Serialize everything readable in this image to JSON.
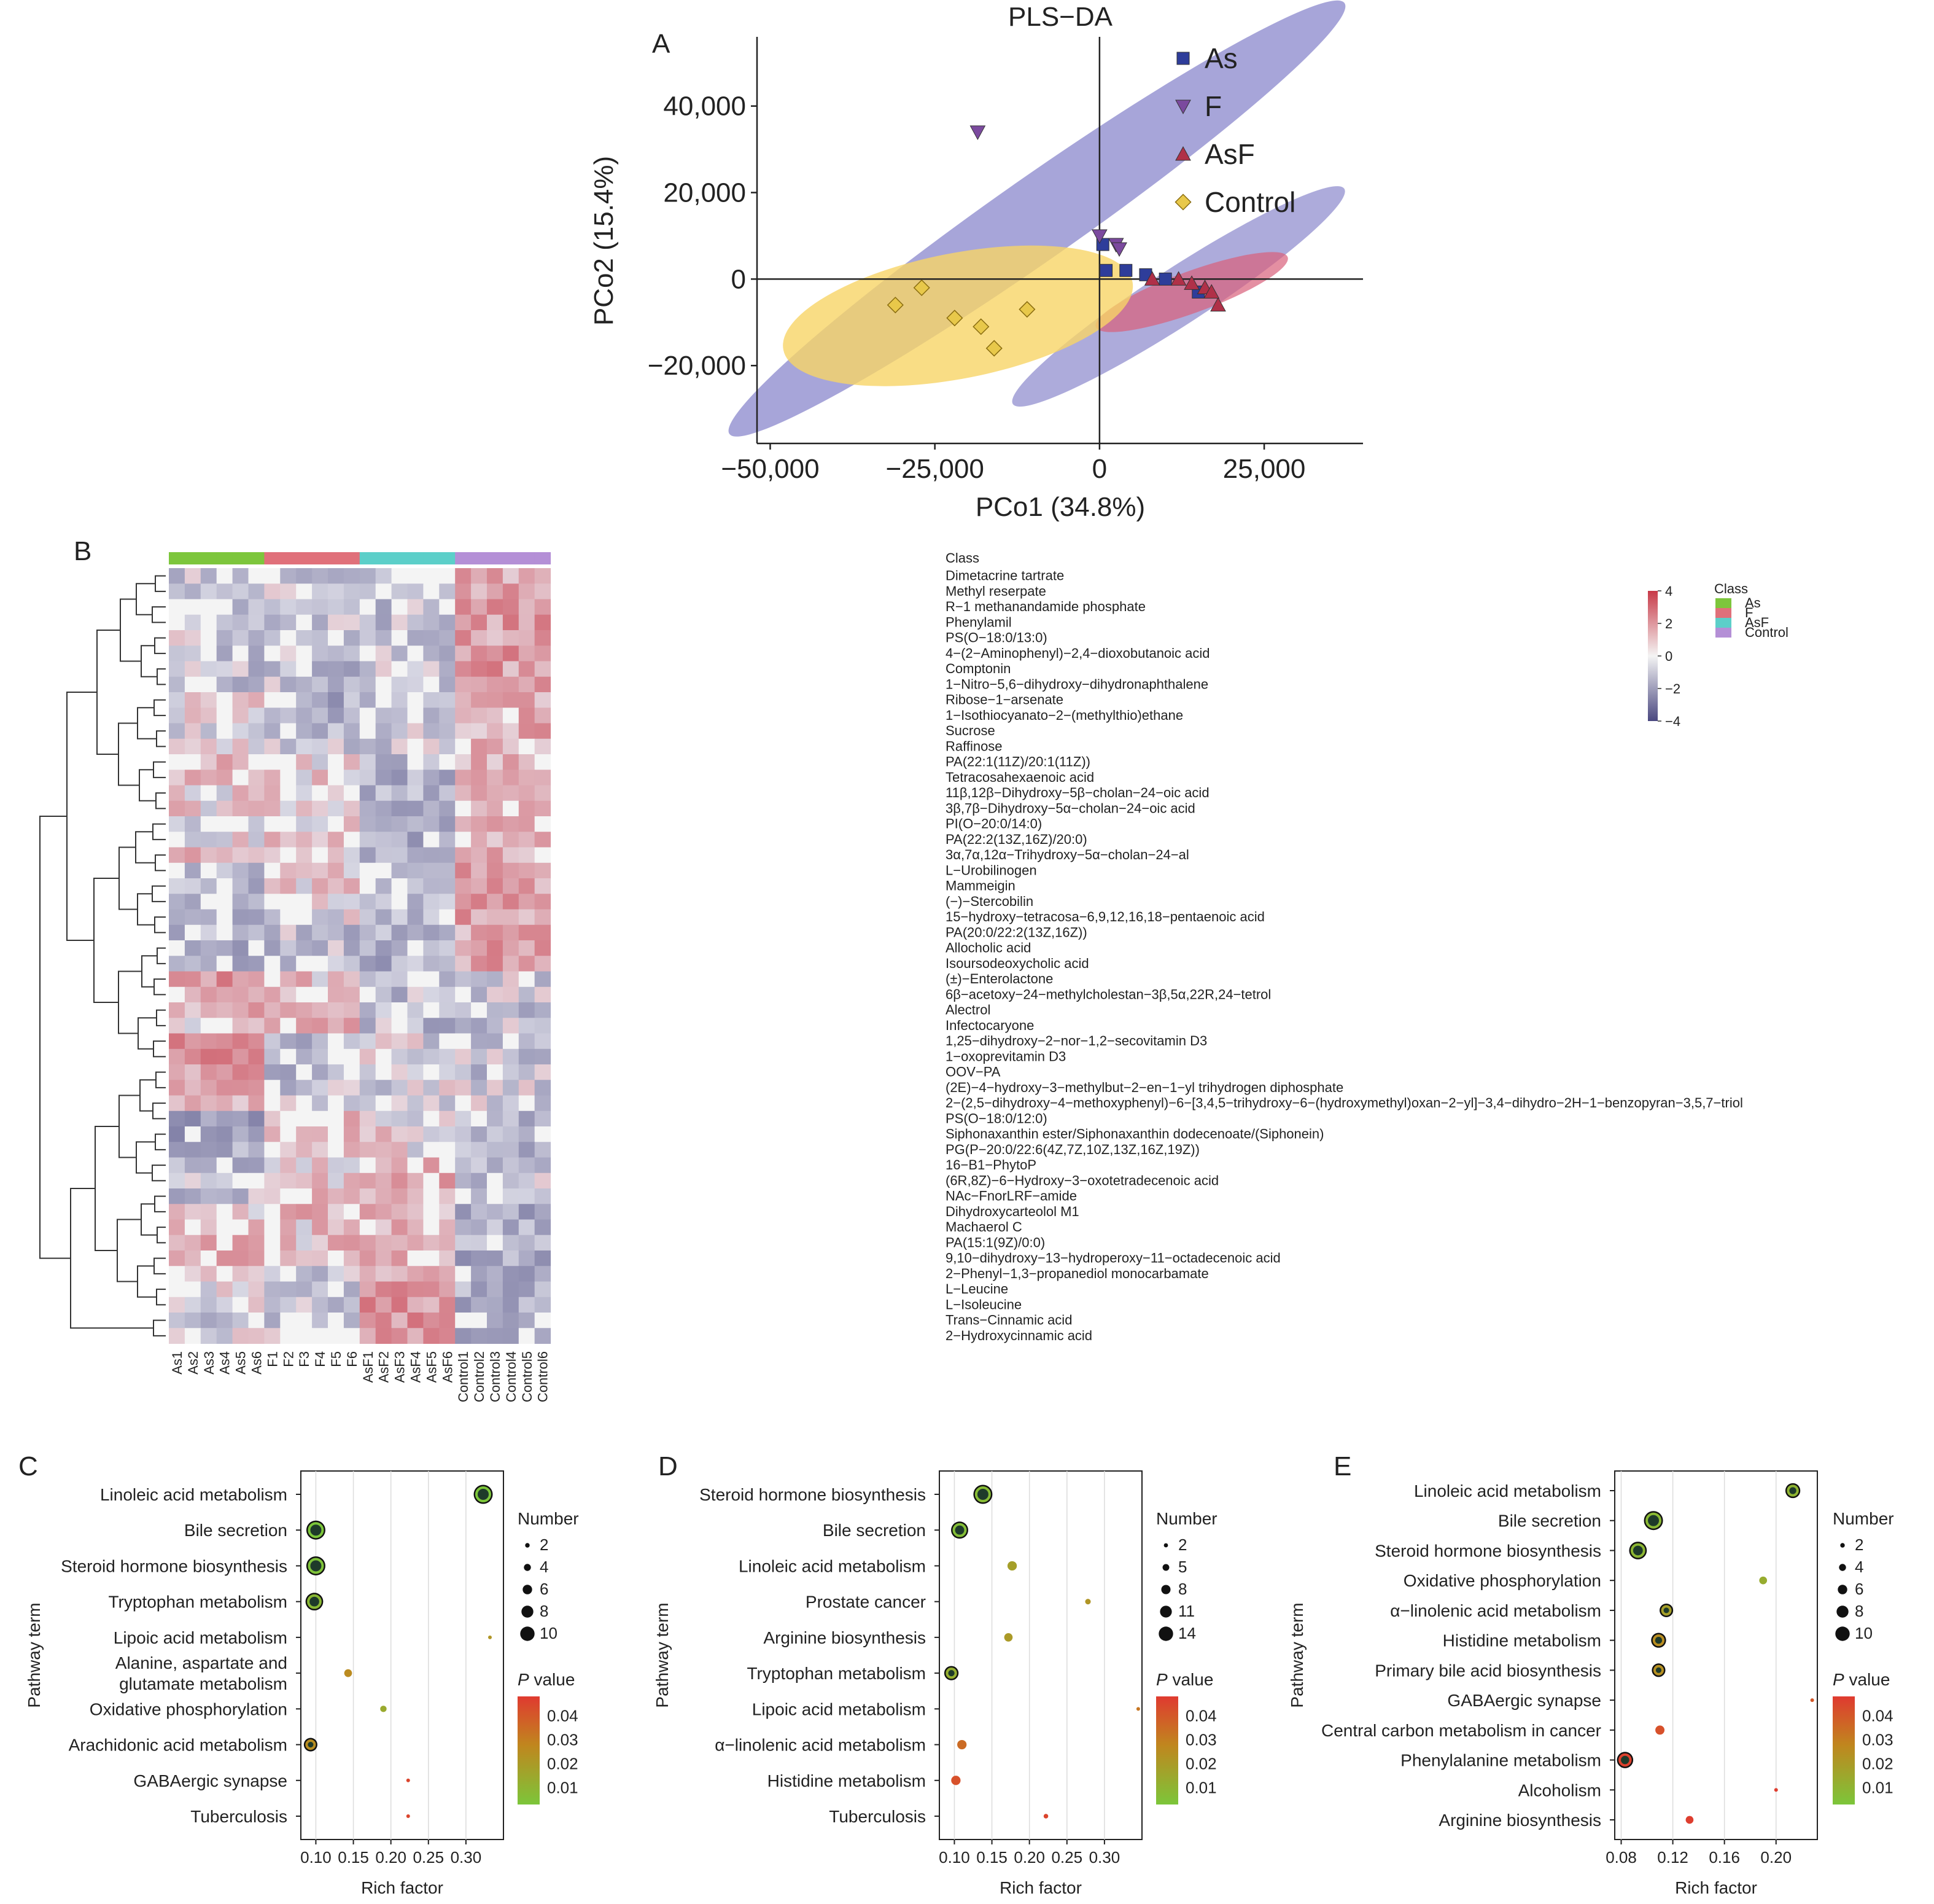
{
  "colors": {
    "As": "#2e3d9a",
    "F": "#7b4a9e",
    "AsF": "#b03048",
    "Control": "#e8c84a",
    "ellipse_purple": "#8a87cc",
    "ellipse_red": "#d9607a",
    "ellipse_yellow": "#f8d566",
    "class_As": "#7dc63c",
    "class_F": "#e0707a",
    "class_AsF": "#5ccfc9",
    "class_Control": "#b48fd6",
    "heat_high": "#c83a48",
    "heat_mid": "#f4f4f4",
    "heat_low": "#4a4880",
    "p_low": "#7cc63a",
    "p_high": "#e03a30"
  },
  "panel_labels": {
    "a": "A",
    "b": "B",
    "c": "C",
    "d": "D",
    "e": "E"
  },
  "chart_data": [
    {
      "type": "scatter",
      "title": "PLS−DA",
      "xlabel": "PCo1 (34.8%)",
      "ylabel": "PCo2 (15.4%)",
      "xlim": [
        -52000,
        40000
      ],
      "ylim": [
        -38000,
        56000
      ],
      "xticks": [
        -50000,
        -25000,
        0,
        25000
      ],
      "xtick_labels": [
        "−50,000",
        "−25,000",
        "0",
        "25,000"
      ],
      "yticks": [
        -20000,
        0,
        20000,
        40000
      ],
      "ytick_labels": [
        "−20,000",
        "0",
        "20,000",
        "40,000"
      ],
      "legend_position": "top-right",
      "series": [
        {
          "name": "As",
          "marker": "square",
          "x": [
            500,
            4000,
            7000,
            10000,
            15000,
            1000
          ],
          "y": [
            8000,
            2000,
            1000,
            0,
            -3000,
            2000
          ]
        },
        {
          "name": "F",
          "marker": "triangle-down",
          "x": [
            -18500,
            0,
            2500,
            3000
          ],
          "y": [
            34000,
            10000,
            8000,
            7000
          ]
        },
        {
          "name": "AsF",
          "marker": "triangle-up",
          "x": [
            8000,
            12000,
            14000,
            16000,
            18000,
            17000
          ],
          "y": [
            0,
            0,
            -1000,
            -2000,
            -6000,
            -3000
          ]
        },
        {
          "name": "Control",
          "marker": "diamond",
          "x": [
            -31000,
            -27000,
            -22000,
            -18000,
            -11000,
            -16000
          ],
          "y": [
            -6000,
            -2000,
            -9000,
            -11000,
            -7000,
            -16000
          ]
        }
      ],
      "ellipses": [
        {
          "name": "F",
          "cx": -9500,
          "cy": 14000,
          "rx": 57000,
          "ry": 9500,
          "angle_deg": -35
        },
        {
          "name": "As",
          "cx": 12000,
          "cy": -4000,
          "rx": 30000,
          "ry": 6500,
          "angle_deg": -33
        },
        {
          "name": "AsF",
          "cx": 14000,
          "cy": -3000,
          "rx": 15500,
          "ry": 4800,
          "angle_deg": -20
        },
        {
          "name": "Control",
          "cx": -21500,
          "cy": -8500,
          "rx": 27000,
          "ry": 14500,
          "angle_deg": -11
        }
      ]
    },
    {
      "type": "heatmap",
      "samples": [
        "As1",
        "As2",
        "As3",
        "As4",
        "As5",
        "As6",
        "F1",
        "F2",
        "F3",
        "F4",
        "F5",
        "F6",
        "AsF1",
        "AsF2",
        "AsF3",
        "AsF4",
        "AsF5",
        "AsF6",
        "Control1",
        "Control2",
        "Control3",
        "Control4",
        "Control5",
        "Control6"
      ],
      "sample_groups": [
        "As",
        "As",
        "As",
        "As",
        "As",
        "As",
        "F",
        "F",
        "F",
        "F",
        "F",
        "F",
        "AsF",
        "AsF",
        "AsF",
        "AsF",
        "AsF",
        "AsF",
        "Control",
        "Control",
        "Control",
        "Control",
        "Control",
        "Control"
      ],
      "class_label": "Class",
      "colorbar_ticks": [
        4,
        2,
        0,
        -2,
        -4
      ],
      "colorbar_tick_labels": [
        "4",
        "2",
        "0",
        "−2",
        "−4"
      ],
      "legend_title": "Class",
      "legend_items": [
        "As",
        "F",
        "AsF",
        "Control"
      ],
      "metabolites": [
        "Dimetacrine tartrate",
        "Methyl reserpate",
        "R−1 methanandamide phosphate",
        "Phenylamil",
        "PS(O−18:0/13:0)",
        "4−(2−Aminophenyl)−2,4−dioxobutanoic acid",
        "Comptonin",
        "1−Nitro−5,6−dihydroxy−dihydronaphthalene",
        "Ribose−1−arsenate",
        "1−Isothiocyanato−2−(methylthio)ethane",
        "Sucrose",
        "Raffinose",
        "PA(22:1(11Z)/20:1(11Z))",
        "Tetracosahexaenoic acid",
        "11β,12β−Dihydroxy−5β−cholan−24−oic acid",
        "3β,7β−Dihydroxy−5α−cholan−24−oic acid",
        "PI(O−20:0/14:0)",
        "PA(22:2(13Z,16Z)/20:0)",
        "3α,7α,12α−Trihydroxy−5α−cholan−24−al",
        "L−Urobilinogen",
        "Mammeigin",
        "(−)−Stercobilin",
        "15−hydroxy−tetracosa−6,9,12,16,18−pentaenoic acid",
        "PA(20:0/22:2(13Z,16Z))",
        "Allocholic acid",
        "Isoursodeoxycholic acid",
        "(±)−Enterolactone",
        "6β−acetoxy−24−methylcholestan−3β,5α,22R,24−tetrol",
        "Alectrol",
        "Infectocaryone",
        "1,25−dihydroxy−2−nor−1,2−secovitamin D3",
        "1−oxoprevitamin D3",
        "OOV−PA",
        "(2E)−4−hydroxy−3−methylbut−2−en−1−yl trihydrogen diphosphate",
        "2−(2,5−dihydroxy−4−methoxyphenyl)−6−[3,4,5−trihydroxy−6−(hydroxymethyl)oxan−2−yl]−3,4−dihydro−2H−1−benzopyran−3,5,7−triol",
        "PS(O−18:0/12:0)",
        "Siphonaxanthin ester/Siphonaxanthin dodecenoate/(Siphonein)",
        "PG(P−20:0/22:6(4Z,7Z,10Z,13Z,16Z,19Z))",
        "16−B1−PhytoP",
        "(6R,8Z)−6−Hydroxy−3−oxotetradecenoic acid",
        "NAc−FnorLRF−amide",
        "Dihydroxycarteolol M1",
        "Machaerol C",
        "PA(15:1(9Z)/0:0)",
        "9,10−dihydroxy−13−hydroperoxy−11−octadecenoic acid",
        "2−Phenyl−1,3−propanediol monocarbamate",
        "L−Leucine",
        "L−Isoleucine",
        "Trans−Cinnamic acid",
        "2−Hydroxycinnamic acid"
      ],
      "group_means": {
        "As": [
          -0.3,
          -0.3,
          -0.5,
          -0.6,
          -0.2,
          -0.6,
          -0.6,
          -0.6,
          0.2,
          0.0,
          0,
          0,
          0.5,
          0.5,
          0.4,
          0.4,
          -0.2,
          0.2,
          0.6,
          -0.7,
          -0.8,
          -0.6,
          -0.8,
          -0.7,
          -0.9,
          -0.8,
          1.6,
          0.8,
          1.2,
          0.5,
          1.8,
          1.6,
          1.5,
          1.0,
          0.8,
          -1.2,
          -1.2,
          -0.8,
          -0.8,
          -0.5,
          -0.6,
          0.3,
          0.6,
          0.8,
          0.8,
          -0.2,
          -0.2,
          -0.2,
          -0.3,
          -0.3
        ],
        "F": [
          -0.5,
          -0.3,
          -0.6,
          -0.6,
          -0.8,
          -0.7,
          -0.7,
          -0.6,
          -1.0,
          -0.8,
          -0.5,
          -0.5,
          0.3,
          0.3,
          0.2,
          0.3,
          0.2,
          0.3,
          0.5,
          0.3,
          0.4,
          0.3,
          0.1,
          -0.6,
          -0.7,
          -0.7,
          0.6,
          0.8,
          0.9,
          0.7,
          -0.6,
          -0.7,
          -0.8,
          -0.6,
          -0.5,
          0.6,
          0.9,
          0.7,
          0.4,
          0.5,
          0.5,
          0.7,
          0.5,
          0.6,
          0.6,
          -0.4,
          -0.4,
          -0.4,
          -0.3,
          -0.3
        ],
        "AsF": [
          -0.4,
          -0.4,
          -0.5,
          -0.6,
          -0.7,
          -0.6,
          -0.5,
          -0.5,
          -0.3,
          -0.4,
          -0.3,
          -0.3,
          -0.8,
          -0.9,
          -1.0,
          -1.1,
          -1.2,
          -1.0,
          -0.9,
          -0.5,
          -0.6,
          -0.6,
          -0.9,
          -1.0,
          -0.9,
          -1.0,
          -0.6,
          -0.7,
          -0.7,
          -0.7,
          -0.2,
          -0.3,
          -0.2,
          -0.2,
          -0.3,
          -0.2,
          0.3,
          0.2,
          0.8,
          0.9,
          0.7,
          0.6,
          0.7,
          0.9,
          0.7,
          0.5,
          1.5,
          1.6,
          1.5,
          1.7
        ],
        "Control": [
          1.2,
          1.4,
          1.3,
          1.4,
          1.3,
          1.5,
          1.4,
          1.5,
          0.8,
          0.9,
          1.0,
          1.0,
          0.8,
          0.9,
          1.0,
          0.9,
          0.8,
          0.8,
          0.8,
          1.4,
          1.3,
          1.2,
          1.3,
          1.2,
          1.3,
          1.2,
          -0.3,
          -0.3,
          -0.5,
          -0.5,
          -0.4,
          -0.5,
          -0.5,
          -0.4,
          -0.4,
          -0.7,
          -0.8,
          -1.0,
          -0.4,
          -0.5,
          -0.3,
          -1.5,
          -1.3,
          -1.1,
          -1.0,
          -0.9,
          -0.9,
          -1.0,
          -0.9,
          -0.9
        ]
      }
    },
    {
      "type": "scatter",
      "subtype": "bubble",
      "xlabel": "Rich factor",
      "ylabel": "Pathway term",
      "xlim": [
        0.08,
        0.35
      ],
      "xticks": [
        0.1,
        0.15,
        0.2,
        0.25,
        0.3
      ],
      "xtick_labels": [
        "0.10",
        "0.15",
        "0.20",
        "0.25",
        "0.30"
      ],
      "categories": [
        "Linoleic acid metabolism",
        "Bile secretion",
        "Steroid hormone biosynthesis",
        "Tryptophan metabolism",
        "Lipoic acid metabolism",
        "Alanine, aspartate and glutamate metabolism",
        "Oxidative phosphorylation",
        "Arachidonic acid metabolism",
        "GABAergic synapse",
        "Tuberculosis"
      ],
      "category_lines": [
        [
          "Linoleic acid metabolism"
        ],
        [
          "Bile secretion"
        ],
        [
          "Steroid hormone biosynthesis"
        ],
        [
          "Tryptophan metabolism"
        ],
        [
          "Lipoic acid metabolism"
        ],
        [
          "Alanine, aspartate and",
          "glutamate metabolism"
        ],
        [
          "Oxidative phosphorylation"
        ],
        [
          "Arachidonic acid metabolism"
        ],
        [
          "GABAergic synapse"
        ],
        [
          "Tuberculosis"
        ]
      ],
      "x": [
        0.323,
        0.1,
        0.1,
        0.098,
        0.332,
        0.143,
        0.19,
        0.093,
        0.223,
        0.223
      ],
      "size": [
        10,
        10,
        10,
        9,
        1,
        4,
        3,
        6,
        1,
        1
      ],
      "pvalue": [
        0.003,
        0.002,
        0.004,
        0.008,
        0.022,
        0.026,
        0.014,
        0.025,
        0.045,
        0.045
      ],
      "size_legend_title": "Number",
      "size_legend": [
        2,
        4,
        6,
        8,
        10
      ],
      "size_range": [
        1,
        10
      ],
      "pvalue_legend_title_italic": "P",
      "pvalue_legend_title_rest": " value",
      "pvalue_ticks": [
        0.04,
        0.03,
        0.02,
        0.01
      ],
      "pvalue_tick_labels": [
        "0.04",
        "0.03",
        "0.02",
        "0.01"
      ],
      "plim": [
        0.003,
        0.048
      ]
    },
    {
      "type": "scatter",
      "subtype": "bubble",
      "xlabel": "Rich factor",
      "ylabel": "Pathway term",
      "xlim": [
        0.08,
        0.35
      ],
      "xticks": [
        0.1,
        0.15,
        0.2,
        0.25,
        0.3
      ],
      "xtick_labels": [
        "0.10",
        "0.15",
        "0.20",
        "0.25",
        "0.30"
      ],
      "categories": [
        "Steroid hormone biosynthesis",
        "Bile secretion",
        "Linoleic acid metabolism",
        "Prostate cancer",
        "Arginine biosynthesis",
        "Tryptophan metabolism",
        "Lipoic acid metabolism",
        "α−linolenic acid metabolism",
        "Histidine metabolism",
        "Tuberculosis"
      ],
      "category_lines": [
        [
          "Steroid hormone biosynthesis"
        ],
        [
          "Bile secretion"
        ],
        [
          "Linoleic acid metabolism"
        ],
        [
          "Prostate cancer"
        ],
        [
          "Arginine biosynthesis"
        ],
        [
          "Tryptophan metabolism"
        ],
        [
          "Lipoic acid metabolism"
        ],
        [
          "α−linolenic acid metabolism"
        ],
        [
          "Histidine metabolism"
        ],
        [
          "Tuberculosis"
        ]
      ],
      "x": [
        0.138,
        0.107,
        0.177,
        0.278,
        0.172,
        0.096,
        0.345,
        0.11,
        0.102,
        0.222
      ],
      "size": [
        14,
        12,
        7,
        3,
        6,
        9,
        1,
        7,
        7,
        2
      ],
      "pvalue": [
        0.007,
        0.006,
        0.018,
        0.022,
        0.02,
        0.012,
        0.032,
        0.035,
        0.042,
        0.045
      ],
      "size_legend_title": "Number",
      "size_legend": [
        2,
        5,
        8,
        11,
        14
      ],
      "size_range": [
        1,
        14
      ],
      "pvalue_legend_title_italic": "P",
      "pvalue_legend_title_rest": " value",
      "pvalue_ticks": [
        0.04,
        0.03,
        0.02,
        0.01
      ],
      "pvalue_tick_labels": [
        "0.04",
        "0.03",
        "0.02",
        "0.01"
      ],
      "plim": [
        0.003,
        0.048
      ]
    },
    {
      "type": "scatter",
      "subtype": "bubble",
      "xlabel": "Rich factor",
      "ylabel": "Pathway term",
      "xlim": [
        0.075,
        0.232
      ],
      "xticks": [
        0.08,
        0.12,
        0.16,
        0.2
      ],
      "xtick_labels": [
        "0.08",
        "0.12",
        "0.16",
        "0.20"
      ],
      "categories": [
        "Linoleic acid metabolism",
        "Bile secretion",
        "Steroid hormone biosynthesis",
        "Oxidative phosphorylation",
        "α−linolenic acid metabolism",
        "Histidine metabolism",
        "Primary bile acid biosynthesis",
        "GABAergic synapse",
        "Central carbon metabolism in cancer",
        "Phenylalanine metabolism",
        "Alcoholism",
        "Arginine biosynthesis"
      ],
      "category_lines": [
        [
          "Linoleic acid metabolism"
        ],
        [
          "Bile secretion"
        ],
        [
          "Steroid hormone biosynthesis"
        ],
        [
          "Oxidative phosphorylation"
        ],
        [
          "α−linolenic acid metabolism"
        ],
        [
          "Histidine metabolism"
        ],
        [
          "Primary bile acid biosynthesis"
        ],
        [
          "GABAergic synapse"
        ],
        [
          "Central carbon metabolism in cancer"
        ],
        [
          "Phenylalanine metabolism"
        ],
        [
          "Alcoholism"
        ],
        [
          "Arginine biosynthesis"
        ]
      ],
      "x": [
        0.213,
        0.105,
        0.093,
        0.19,
        0.115,
        0.109,
        0.109,
        0.228,
        0.11,
        0.083,
        0.2,
        0.133
      ],
      "size": [
        7,
        10,
        9,
        4,
        6,
        7,
        6,
        1,
        5,
        8,
        1,
        4
      ],
      "pvalue": [
        0.01,
        0.008,
        0.009,
        0.013,
        0.018,
        0.025,
        0.024,
        0.04,
        0.042,
        0.046,
        0.047,
        0.047
      ],
      "size_legend_title": "Number",
      "size_legend": [
        2,
        4,
        6,
        8,
        10
      ],
      "size_range": [
        1,
        10
      ],
      "pvalue_legend_title_italic": "P",
      "pvalue_legend_title_rest": " value",
      "pvalue_ticks": [
        0.04,
        0.03,
        0.02,
        0.01
      ],
      "pvalue_tick_labels": [
        "0.04",
        "0.03",
        "0.02",
        "0.01"
      ],
      "plim": [
        0.003,
        0.048
      ]
    }
  ]
}
